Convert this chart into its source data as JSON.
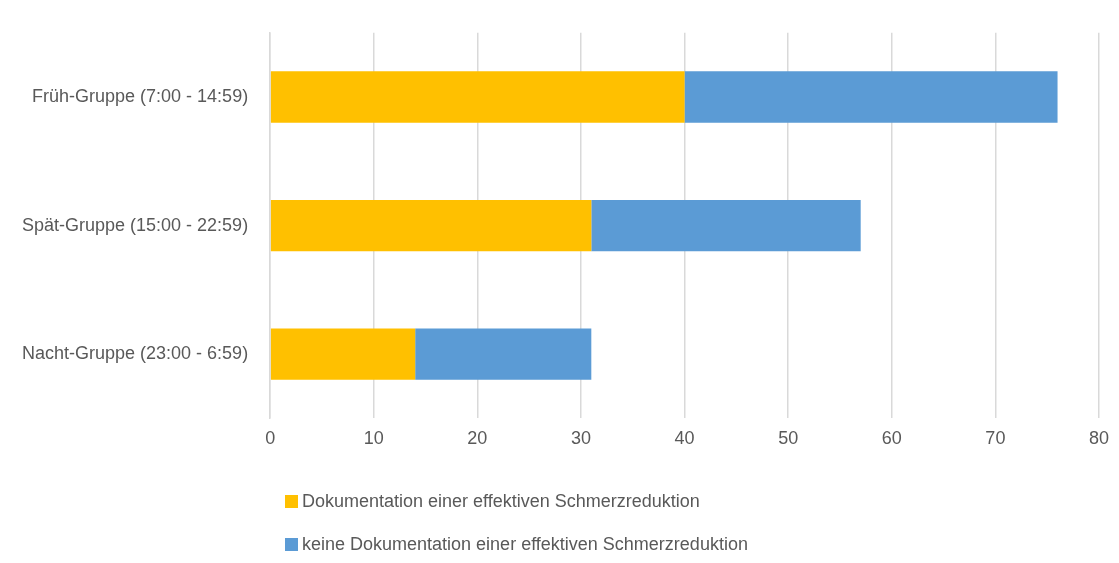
{
  "chart_data": {
    "type": "bar",
    "orientation": "horizontal",
    "stacked": true,
    "categories": [
      "Früh-Gruppe (7:00 - 14:59)",
      "Spät-Gruppe (15:00 - 22:59)",
      "Nacht-Gruppe (23:00 - 6:59)"
    ],
    "series": [
      {
        "name": "Dokumentation einer effektiven Schmerzreduktion",
        "color": "#ffc000",
        "values": [
          40,
          31,
          14
        ]
      },
      {
        "name": "keine Dokumentation einer effektiven Schmerzreduktion",
        "color": "#5b9bd5",
        "values": [
          36,
          26,
          17
        ]
      }
    ],
    "xlim": [
      0,
      80
    ],
    "xticks": [
      0,
      10,
      20,
      30,
      40,
      50,
      60,
      70,
      80
    ],
    "grid": "x",
    "legend": "bottom"
  }
}
